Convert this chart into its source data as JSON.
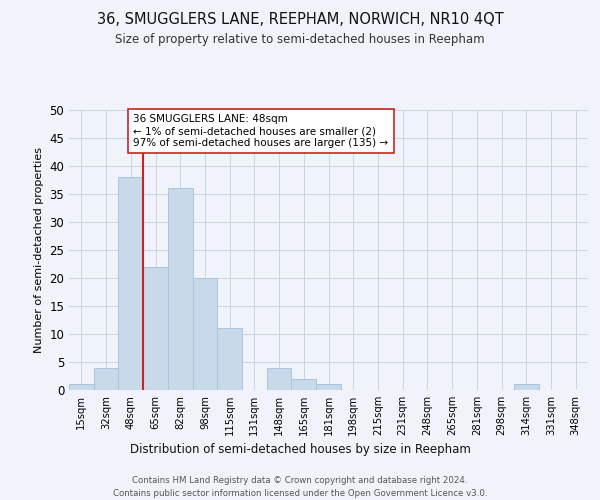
{
  "title": "36, SMUGGLERS LANE, REEPHAM, NORWICH, NR10 4QT",
  "subtitle": "Size of property relative to semi-detached houses in Reepham",
  "xlabel": "Distribution of semi-detached houses by size in Reepham",
  "ylabel": "Number of semi-detached properties",
  "bin_labels": [
    "15sqm",
    "32sqm",
    "48sqm",
    "65sqm",
    "82sqm",
    "98sqm",
    "115sqm",
    "131sqm",
    "148sqm",
    "165sqm",
    "181sqm",
    "198sqm",
    "215sqm",
    "231sqm",
    "248sqm",
    "265sqm",
    "281sqm",
    "298sqm",
    "314sqm",
    "331sqm",
    "348sqm"
  ],
  "bar_values": [
    1,
    4,
    38,
    22,
    36,
    20,
    11,
    0,
    4,
    2,
    1,
    0,
    0,
    0,
    0,
    0,
    0,
    0,
    1,
    0,
    0
  ],
  "bar_color": "#c8d9ea",
  "bar_edge_color": "#aac4dc",
  "vline_x": 2.5,
  "vline_color": "#cc2222",
  "annotation_text": "36 SMUGGLERS LANE: 48sqm\n← 1% of semi-detached houses are smaller (2)\n97% of semi-detached houses are larger (135) →",
  "annotation_box_color": "white",
  "annotation_box_edge": "#cc2222",
  "ylim": [
    0,
    50
  ],
  "yticks": [
    0,
    5,
    10,
    15,
    20,
    25,
    30,
    35,
    40,
    45,
    50
  ],
  "footer_line1": "Contains HM Land Registry data © Crown copyright and database right 2024.",
  "footer_line2": "Contains public sector information licensed under the Open Government Licence v3.0.",
  "bg_color": "#f0f4fa",
  "grid_color": "#c8d4e4"
}
